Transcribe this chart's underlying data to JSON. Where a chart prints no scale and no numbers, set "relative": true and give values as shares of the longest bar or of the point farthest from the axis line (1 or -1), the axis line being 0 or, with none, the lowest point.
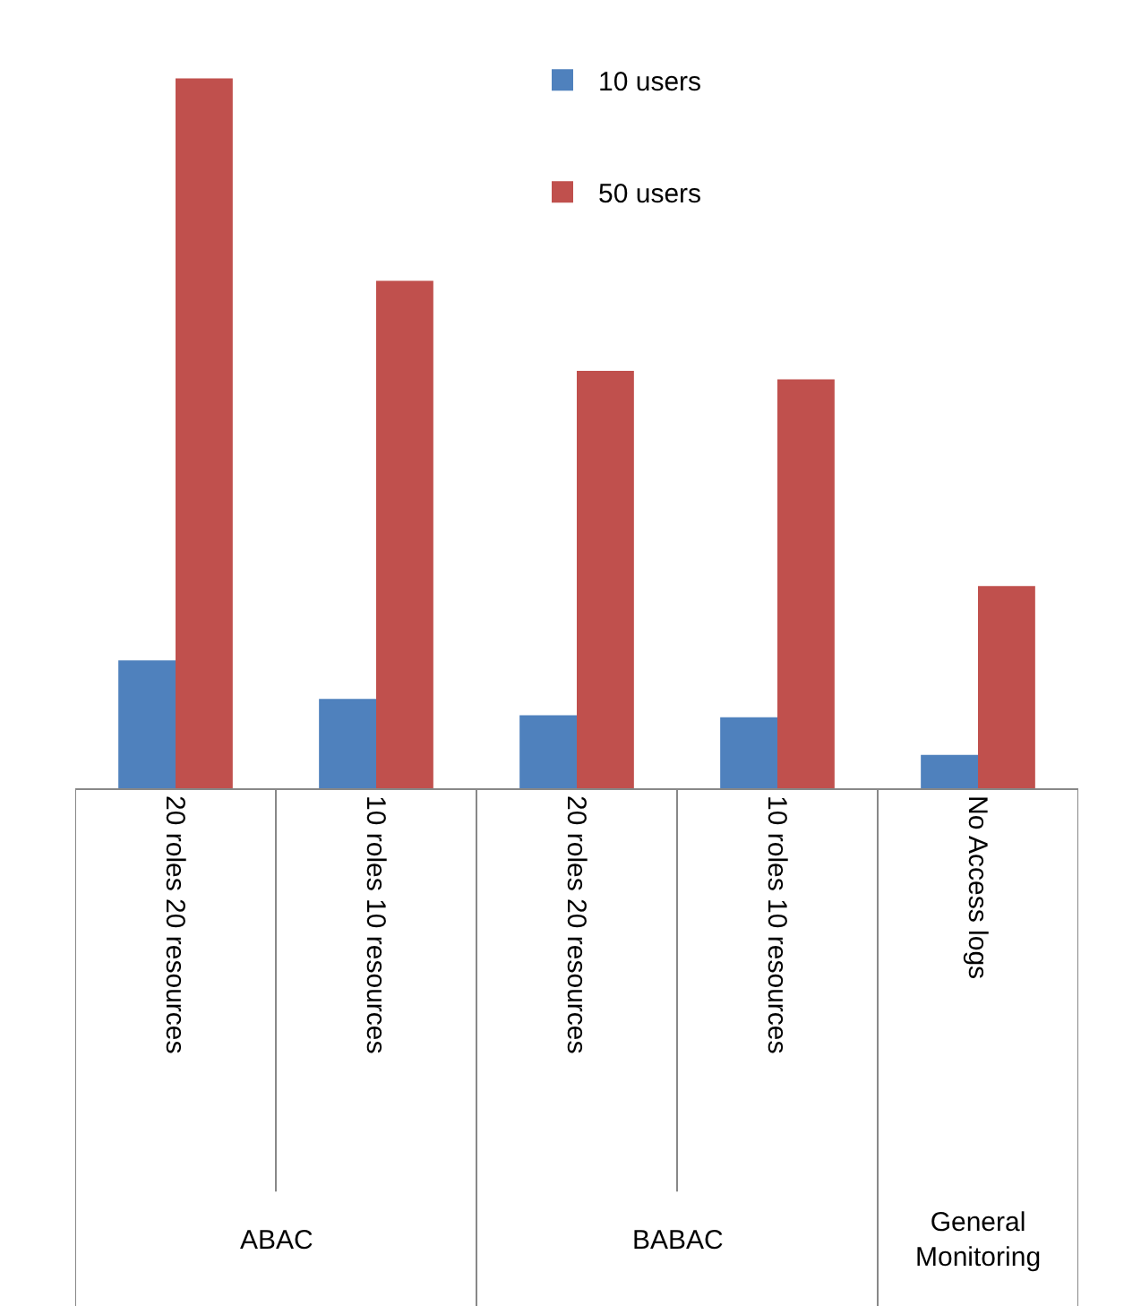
{
  "chart_data": {
    "type": "bar",
    "relative": true,
    "categories": [
      "20 roles 20 resources",
      "10 roles 10 resources",
      "20 roles 20 resources",
      "10 roles 10 resources",
      "No Access logs"
    ],
    "series": [
      {
        "name": "10 users",
        "color": "#4f81bd",
        "values": [
          0.18,
          0.126,
          0.103,
          0.1,
          0.047
        ]
      },
      {
        "name": "50 users",
        "color": "#c0504d",
        "values": [
          1,
          0.715,
          0.588,
          0.576,
          0.285
        ]
      }
    ],
    "annotations": [
      "ABAC",
      "BABAC",
      "General Monitoring"
    ],
    "legend": "top"
  }
}
